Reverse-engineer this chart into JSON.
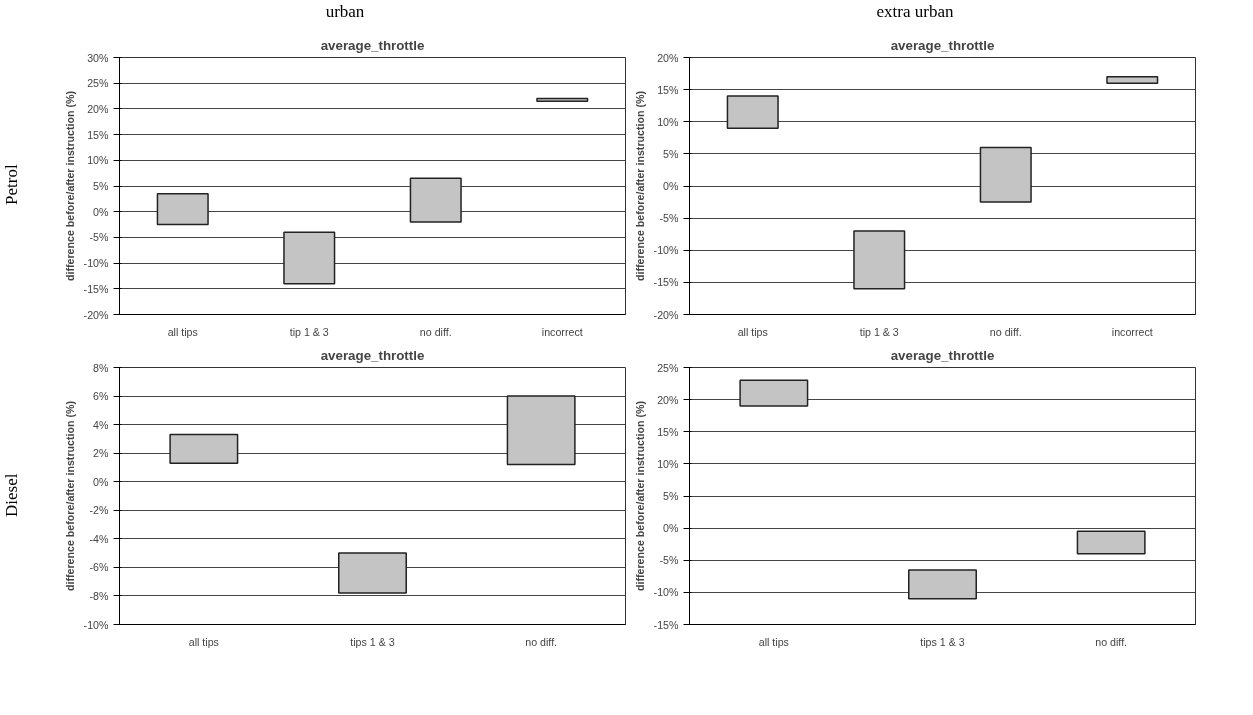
{
  "chart_data": [
    {
      "type": "bar",
      "title": "average_throttle",
      "ylabel": "difference before/after instruction (%)",
      "annotations": [
        "urban",
        "Petrol"
      ],
      "categories": [
        "all tips",
        "tip 1 & 3",
        "no diff.",
        "incorrect"
      ],
      "values": [
        6,
        10,
        8.5,
        0.5
      ],
      "base": [
        -2.5,
        -14,
        -2,
        21.5
      ],
      "color": "#c4c4c4",
      "ylim": [
        -20,
        30
      ],
      "yticks": [
        {
          "value": -20,
          "label": "-20%"
        },
        {
          "value": -15,
          "label": "-15%"
        },
        {
          "value": -10,
          "label": "-10%"
        },
        {
          "value": -5,
          "label": "-5%"
        },
        {
          "value": 0,
          "label": "0%"
        },
        {
          "value": 5,
          "label": "5%"
        },
        {
          "value": 10,
          "label": "10%"
        },
        {
          "value": 15,
          "label": "15%"
        },
        {
          "value": 20,
          "label": "20%"
        },
        {
          "value": 25,
          "label": "25%"
        },
        {
          "value": 30,
          "label": "30%"
        }
      ],
      "grid": "y"
    },
    {
      "type": "bar",
      "title": "average_throttle",
      "ylabel": "difference before/after instruction (%)",
      "annotations": [
        "extra urban"
      ],
      "categories": [
        "all tips",
        "tip 1 & 3",
        "no diff.",
        "incorrect"
      ],
      "values": [
        5,
        9,
        8.5,
        1
      ],
      "base": [
        9,
        -16,
        -2.5,
        16
      ],
      "color": "#c4c4c4",
      "ylim": [
        -20,
        20
      ],
      "yticks": [
        {
          "value": -20,
          "label": "-20%"
        },
        {
          "value": -15,
          "label": "-15%"
        },
        {
          "value": -10,
          "label": "-10%"
        },
        {
          "value": -5,
          "label": "-5%"
        },
        {
          "value": 0,
          "label": "0%"
        },
        {
          "value": 5,
          "label": "5%"
        },
        {
          "value": 10,
          "label": "10%"
        },
        {
          "value": 15,
          "label": "15%"
        },
        {
          "value": 20,
          "label": "20%"
        }
      ],
      "grid": "y"
    },
    {
      "type": "bar",
      "title": "average_throttle",
      "ylabel": "difference before/after instruction (%)",
      "annotations": [
        "Diesel"
      ],
      "categories": [
        "all tips",
        "tips 1 & 3",
        "no diff."
      ],
      "values": [
        2,
        2.8,
        4.8
      ],
      "base": [
        1.3,
        -7.8,
        1.2
      ],
      "color": "#c4c4c4",
      "ylim": [
        -10,
        8
      ],
      "yticks": [
        {
          "value": -10,
          "label": "-10%"
        },
        {
          "value": -8,
          "label": "-8%"
        },
        {
          "value": -6,
          "label": "-6%"
        },
        {
          "value": -4,
          "label": "-4%"
        },
        {
          "value": -2,
          "label": "-2%"
        },
        {
          "value": 0,
          "label": "0%"
        },
        {
          "value": 2,
          "label": "2%"
        },
        {
          "value": 4,
          "label": "4%"
        },
        {
          "value": 6,
          "label": "6%"
        },
        {
          "value": 8,
          "label": "8%"
        }
      ],
      "grid": "y"
    },
    {
      "type": "bar",
      "title": "average_throttle",
      "ylabel": "difference before/after instruction (%)",
      "categories": [
        "all tips",
        "tips 1 & 3",
        "no diff."
      ],
      "values": [
        4,
        4.5,
        3.5
      ],
      "base": [
        19,
        -11,
        -4
      ],
      "color": "#c4c4c4",
      "ylim": [
        -15,
        25
      ],
      "yticks": [
        {
          "value": -15,
          "label": "-15%"
        },
        {
          "value": -10,
          "label": "-10%"
        },
        {
          "value": -5,
          "label": "-5%"
        },
        {
          "value": 0,
          "label": "0%"
        },
        {
          "value": 5,
          "label": "5%"
        },
        {
          "value": 10,
          "label": "10%"
        },
        {
          "value": 15,
          "label": "15%"
        },
        {
          "value": 20,
          "label": "20%"
        },
        {
          "value": 25,
          "label": "25%"
        }
      ],
      "grid": "y"
    }
  ]
}
